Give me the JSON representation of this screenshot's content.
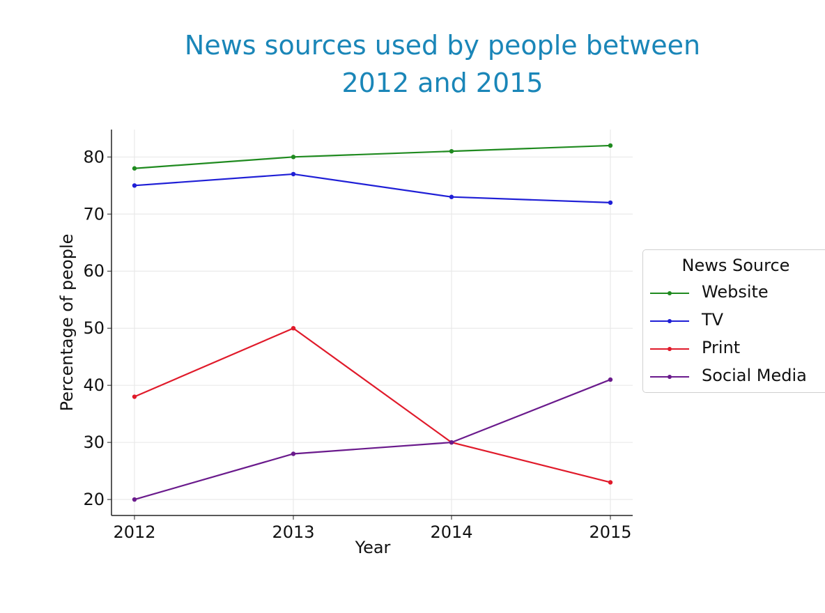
{
  "chart_data": {
    "type": "line",
    "title_lines": [
      "News sources used by people between",
      "2012 and 2015"
    ],
    "xlabel": "Year",
    "ylabel": "Percentage of people",
    "categories": [
      "2012",
      "2013",
      "2014",
      "2015"
    ],
    "yticks": [
      20,
      30,
      40,
      50,
      60,
      70,
      80
    ],
    "ylim": [
      17.2,
      84.8
    ],
    "grid": true,
    "legend": {
      "title": "News Source",
      "placement": "right"
    },
    "series": [
      {
        "name": "Website",
        "color": "#1f8a1f",
        "values": [
          78,
          80,
          81,
          82
        ]
      },
      {
        "name": "TV",
        "color": "#1f1fd6",
        "values": [
          75,
          77,
          73,
          72
        ]
      },
      {
        "name": "Print",
        "color": "#e01a2a",
        "values": [
          38,
          50,
          30,
          23
        ]
      },
      {
        "name": "Social Media",
        "color": "#6a1a8c",
        "values": [
          20,
          28,
          30,
          41
        ]
      }
    ]
  }
}
